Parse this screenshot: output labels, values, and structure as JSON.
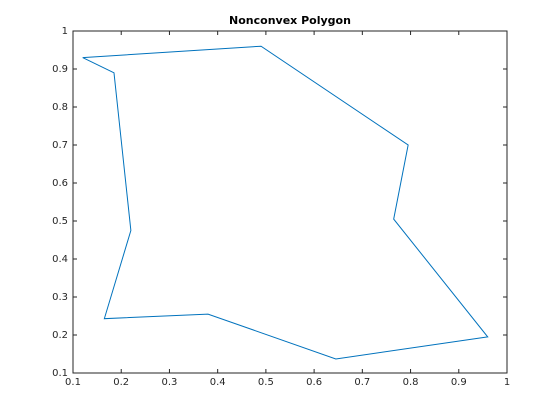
{
  "chart_data": {
    "type": "line",
    "title": "Nonconvex Polygon",
    "x": [
      0.12,
      0.49,
      0.795,
      0.765,
      0.96,
      0.645,
      0.38,
      0.165,
      0.22,
      0.185,
      0.12
    ],
    "series": [
      {
        "color": "#0072bd",
        "values": [
          0.93,
          0.96,
          0.7,
          0.505,
          0.195,
          0.137,
          0.255,
          0.243,
          0.475,
          0.89,
          0.93
        ]
      }
    ],
    "xlim": [
      0.1,
      1
    ],
    "xticks": [
      0.1,
      0.2,
      0.3,
      0.4,
      0.5,
      0.6,
      0.7,
      0.8,
      0.9,
      1
    ],
    "ylim": [
      0.1,
      1
    ],
    "yticks": [
      0.1,
      0.2,
      0.3,
      0.4,
      0.5,
      0.6,
      0.7,
      0.8,
      0.9,
      1
    ],
    "grid": false
  }
}
